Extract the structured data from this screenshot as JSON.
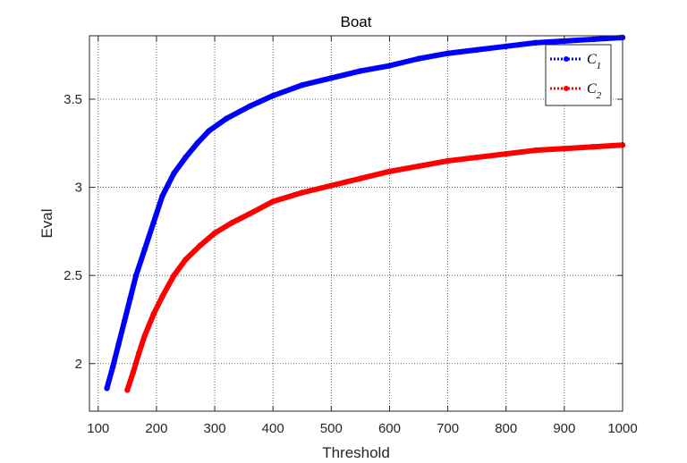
{
  "chart_data": {
    "type": "line",
    "title": "Boat",
    "xlabel": "Threshold",
    "ylabel": "Eval",
    "xlim": [
      85,
      1000
    ],
    "ylim": [
      1.73,
      3.86
    ],
    "xticks": [
      100,
      200,
      300,
      400,
      500,
      600,
      700,
      800,
      900,
      1000
    ],
    "yticks": [
      2,
      2.5,
      3,
      3.5
    ],
    "ytick_labels": [
      "2",
      "2.5",
      "3",
      "3.5"
    ],
    "grid": true,
    "legend_position": "top-right",
    "series": [
      {
        "name": "C",
        "name_subscript": "1",
        "color": "#0000ff",
        "line_style": "dotted",
        "marker": "dot",
        "x": [
          115,
          125,
          135,
          145,
          155,
          165,
          180,
          195,
          210,
          230,
          250,
          270,
          290,
          320,
          360,
          400,
          450,
          500,
          550,
          600,
          650,
          700,
          750,
          800,
          850,
          900,
          950,
          1000
        ],
        "y": [
          1.86,
          1.98,
          2.11,
          2.24,
          2.37,
          2.5,
          2.65,
          2.8,
          2.95,
          3.08,
          3.17,
          3.25,
          3.32,
          3.39,
          3.46,
          3.52,
          3.58,
          3.62,
          3.66,
          3.69,
          3.73,
          3.76,
          3.78,
          3.8,
          3.82,
          3.83,
          3.84,
          3.85
        ]
      },
      {
        "name": "C",
        "name_subscript": "2",
        "color": "#ff0000",
        "line_style": "dotted",
        "marker": "dot",
        "x": [
          150,
          160,
          170,
          180,
          195,
          210,
          230,
          250,
          275,
          300,
          330,
          360,
          400,
          450,
          500,
          550,
          600,
          650,
          700,
          750,
          800,
          850,
          900,
          950,
          1000
        ],
        "y": [
          1.85,
          1.95,
          2.06,
          2.16,
          2.28,
          2.38,
          2.5,
          2.59,
          2.67,
          2.74,
          2.8,
          2.85,
          2.92,
          2.97,
          3.01,
          3.05,
          3.09,
          3.12,
          3.15,
          3.17,
          3.19,
          3.21,
          3.22,
          3.23,
          3.24
        ]
      }
    ]
  }
}
